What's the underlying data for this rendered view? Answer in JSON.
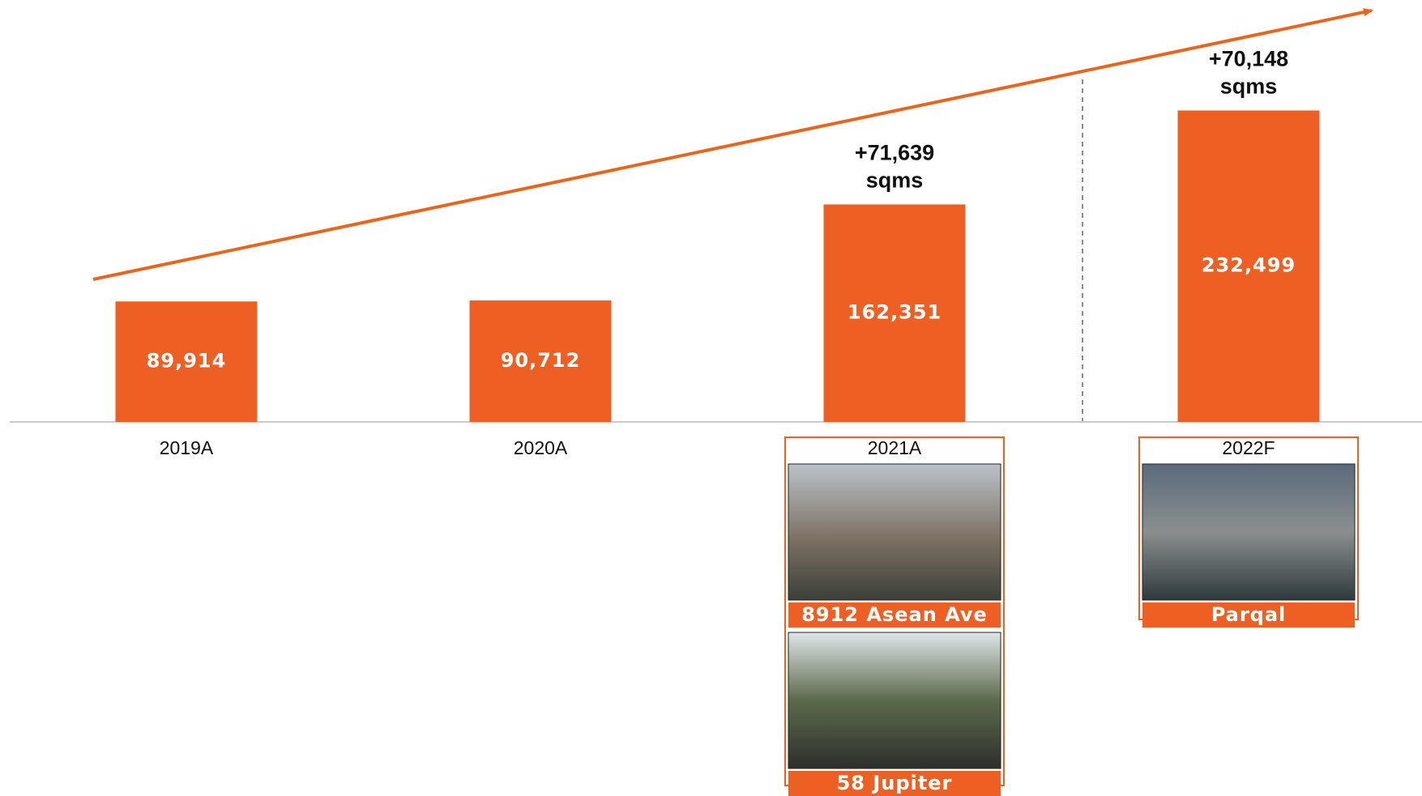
{
  "chart_data": {
    "type": "bar",
    "categories": [
      "2019A",
      "2020A",
      "2021A",
      "2022F"
    ],
    "values": [
      89914,
      90712,
      162351,
      232499
    ],
    "value_labels": [
      "89,914",
      "90,712",
      "162,351",
      "232,499"
    ],
    "color": "#ee5f24",
    "ylim": [
      0,
      315000
    ],
    "bar_annotations": [
      null,
      null,
      [
        "+71,639",
        "sqms"
      ],
      [
        "+70,148",
        "sqms"
      ]
    ],
    "projects": [
      null,
      null,
      [
        "8912 Asean Ave",
        "58 Jupiter"
      ],
      [
        "Parqal"
      ]
    ]
  }
}
